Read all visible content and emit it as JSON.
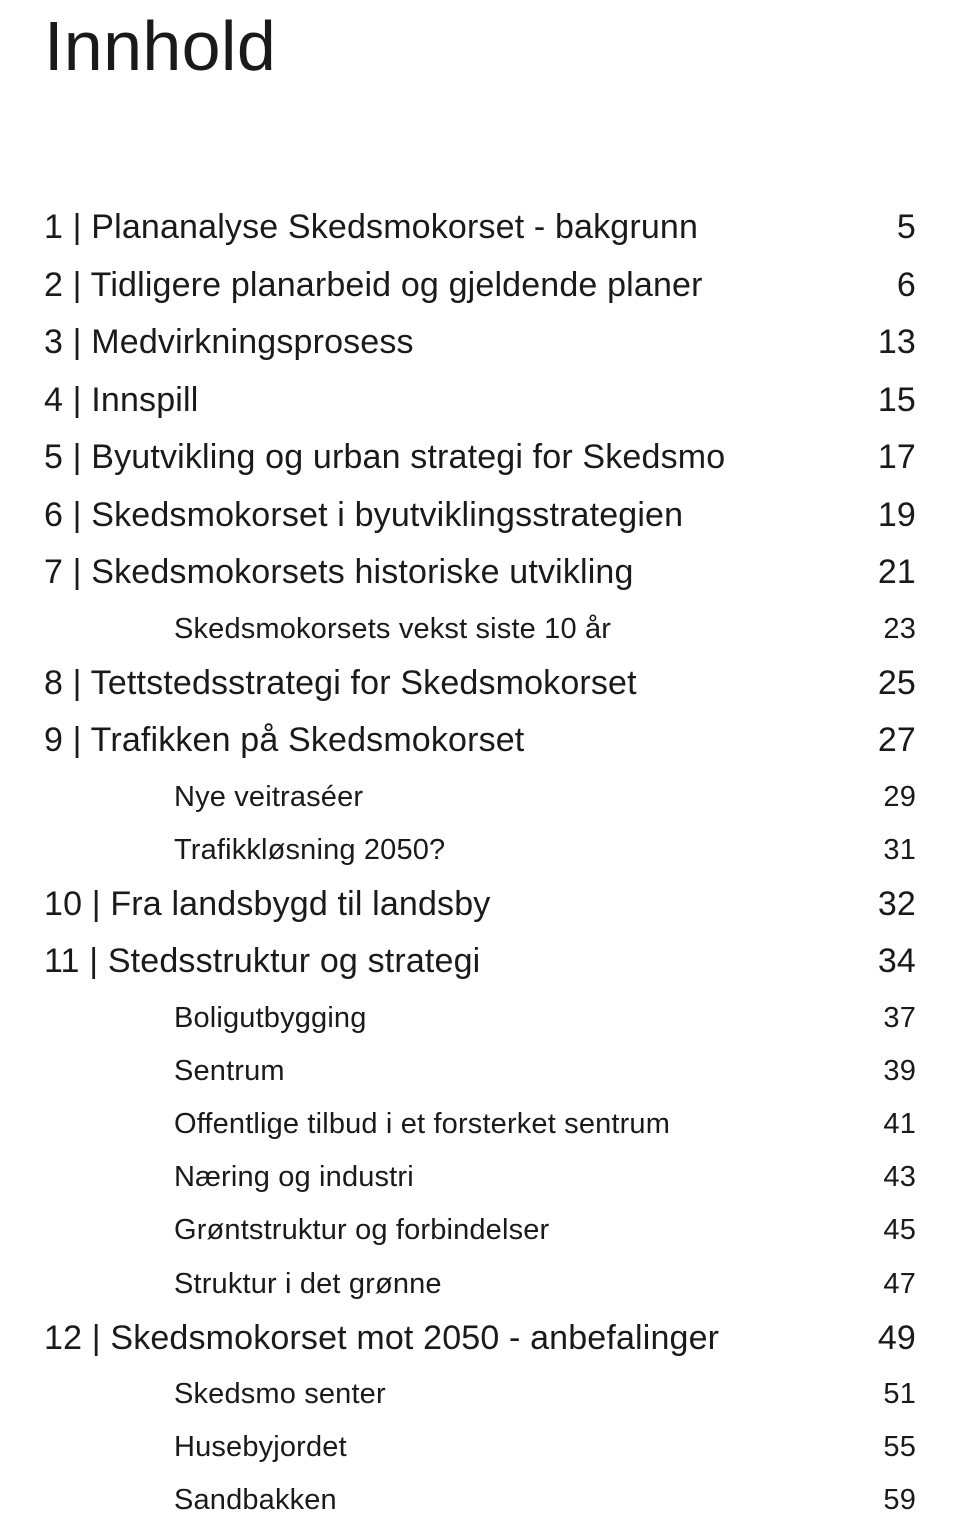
{
  "title": "Innhold",
  "toc": [
    {
      "type": "main",
      "num": "1",
      "label": "Plananalyse Skedsmokorset - bakgrunn",
      "page": "5"
    },
    {
      "type": "main",
      "num": "2",
      "label": "Tidligere planarbeid og gjeldende planer",
      "page": "6"
    },
    {
      "type": "main",
      "num": "3",
      "label": "Medvirkningsprosess",
      "page": "13"
    },
    {
      "type": "main",
      "num": "4",
      "label": "Innspill",
      "page": "15"
    },
    {
      "type": "main",
      "num": "5",
      "label": "Byutvikling og urban strategi for Skedsmo",
      "page": "17"
    },
    {
      "type": "main",
      "num": "6",
      "label": "Skedsmokorset i byutviklingsstrategien",
      "page": "19"
    },
    {
      "type": "main",
      "num": "7",
      "label": "Skedsmokorsets historiske utvikling",
      "page": "21"
    },
    {
      "type": "sub",
      "num": "",
      "label": "Skedsmokorsets vekst siste 10 år",
      "page": "23"
    },
    {
      "type": "main",
      "num": "8",
      "label": "Tettstedsstrategi for Skedsmokorset",
      "page": "25"
    },
    {
      "type": "main",
      "num": "9",
      "label": "Trafikken på Skedsmokorset",
      "page": "27"
    },
    {
      "type": "sub",
      "num": "",
      "label": "Nye veitraséer",
      "page": "29"
    },
    {
      "type": "sub",
      "num": "",
      "label": "Trafikkløsning 2050?",
      "page": "31"
    },
    {
      "type": "main",
      "num": "10",
      "label": "Fra landsbygd til landsby",
      "page": "32"
    },
    {
      "type": "main",
      "num": "11",
      "label": "Stedsstruktur og strategi",
      "page": "34"
    },
    {
      "type": "sub",
      "num": "",
      "label": "Boligutbygging",
      "page": "37"
    },
    {
      "type": "sub",
      "num": "",
      "label": "Sentrum",
      "page": "39"
    },
    {
      "type": "sub",
      "num": "",
      "label": "Offentlige tilbud i et forsterket sentrum",
      "page": "41"
    },
    {
      "type": "sub",
      "num": "",
      "label": "Næring og industri",
      "page": "43"
    },
    {
      "type": "sub",
      "num": "",
      "label": "Grøntstruktur og forbindelser",
      "page": "45"
    },
    {
      "type": "sub",
      "num": "",
      "label": "Struktur i det grønne",
      "page": "47"
    },
    {
      "type": "main",
      "num": "12",
      "label": "Skedsmokorset mot 2050 - anbefalinger",
      "page": "49"
    },
    {
      "type": "sub",
      "num": "",
      "label": "Skedsmo senter",
      "page": "51"
    },
    {
      "type": "sub",
      "num": "",
      "label": "Husebyjordet",
      "page": "55"
    },
    {
      "type": "sub",
      "num": "",
      "label": "Sandbakken",
      "page": "59"
    }
  ]
}
